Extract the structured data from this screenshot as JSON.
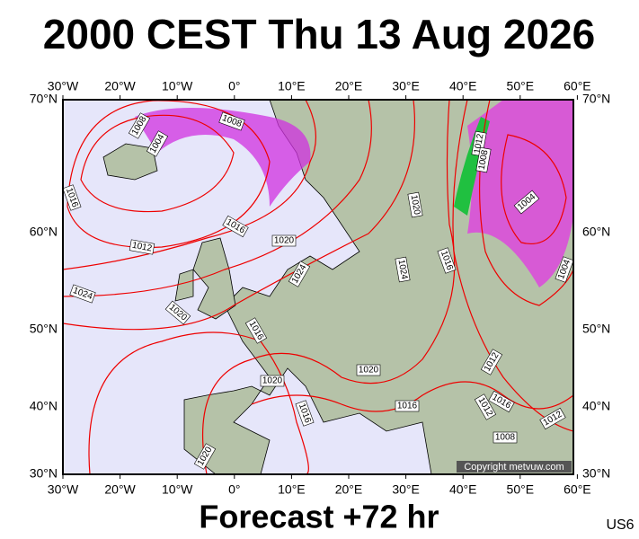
{
  "header": {
    "title": "2000 CEST Thu 13 Aug 2026"
  },
  "map": {
    "lon_labels": [
      "30°W",
      "20°W",
      "10°W",
      "0°",
      "10°E",
      "20°E",
      "30°E",
      "40°E",
      "50°E",
      "60°E"
    ],
    "lat_labels": [
      "70°N",
      "60°N",
      "50°N",
      "40°N",
      "30°N"
    ],
    "isobar_labels": [
      "1008",
      "1004",
      "1008",
      "1016",
      "1012",
      "1016",
      "1024",
      "1020",
      "1016",
      "1020",
      "1024",
      "1020",
      "1024",
      "1016",
      "1012",
      "1008",
      "1004",
      "1004",
      "1020",
      "1020",
      "1016",
      "1016",
      "1012",
      "1016",
      "1012",
      "1008",
      "1012",
      "1020"
    ],
    "copyright": "Copyright metvuw.com"
  },
  "footer": {
    "forecast": "Forecast +72 hr",
    "code": "US6"
  }
}
